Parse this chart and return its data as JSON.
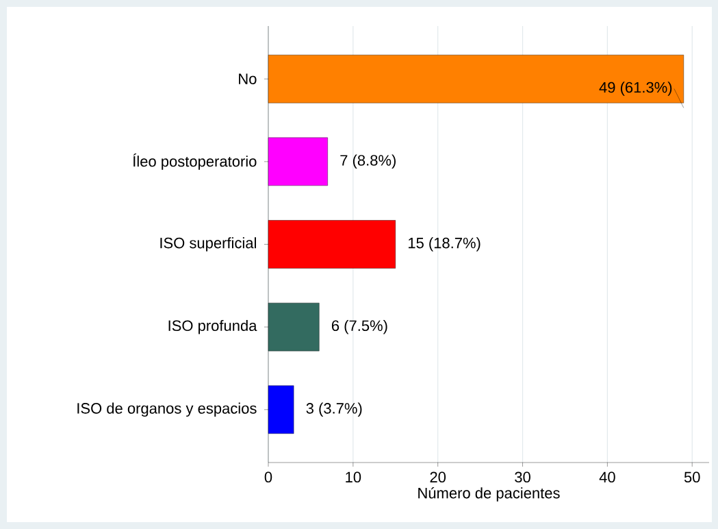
{
  "chart_data": {
    "type": "bar",
    "orientation": "horizontal",
    "categories": [
      "No",
      "Íleo postoperatorio",
      "ISO superficial",
      "ISO profunda",
      "ISO de organos y espacios"
    ],
    "values": [
      49,
      7,
      15,
      6,
      3
    ],
    "colors": [
      "#ff8000",
      "#ff00ff",
      "#ff0000",
      "#336b60",
      "#0000ff"
    ],
    "value_labels": [
      "49 (61.3%)",
      "7 (8.8%)",
      "15 (18.7%)",
      "6 (7.5%)",
      "3 (3.7%)"
    ],
    "xlabel": "Número de pacientes",
    "xlim": [
      0,
      52
    ],
    "xticks": [
      0,
      10,
      20,
      30,
      40,
      50
    ],
    "grid": "x"
  }
}
